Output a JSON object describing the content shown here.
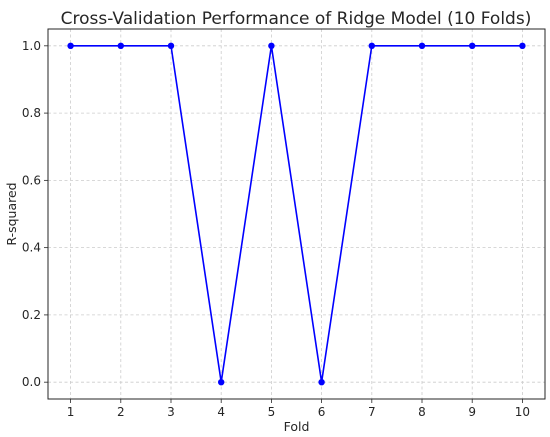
{
  "chart_data": {
    "type": "line",
    "title": "Cross-Validation Performance of Ridge Model (10 Folds)",
    "xlabel": "Fold",
    "ylabel": "R-squared",
    "x": [
      1,
      2,
      3,
      4,
      5,
      6,
      7,
      8,
      9,
      10
    ],
    "x_tick_labels": [
      "1",
      "2",
      "3",
      "4",
      "5",
      "6",
      "7",
      "8",
      "9",
      "10"
    ],
    "y_ticks": [
      0.0,
      0.2,
      0.4,
      0.6,
      0.8,
      1.0
    ],
    "y_tick_labels": [
      "0.0",
      "0.2",
      "0.4",
      "0.6",
      "0.8",
      "1.0"
    ],
    "series": [
      {
        "values": [
          1.0,
          1.0,
          1.0,
          0.0,
          1.0,
          0.0,
          1.0,
          1.0,
          1.0,
          1.0
        ],
        "color": "#0000ff",
        "marker": "circle"
      }
    ],
    "xlim": [
      0.55,
      10.45
    ],
    "ylim": [
      -0.05,
      1.05
    ],
    "grid": true,
    "legend": "none"
  }
}
